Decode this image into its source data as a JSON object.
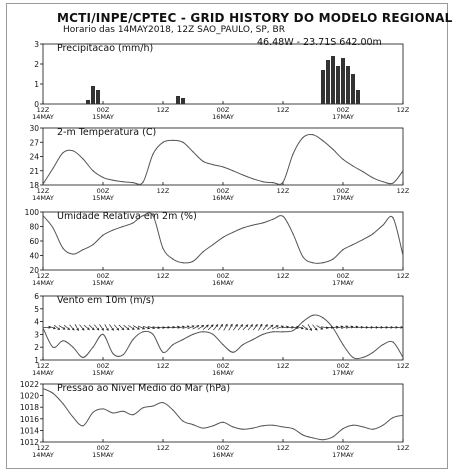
{
  "header": {
    "title": "MCTI/INPE/CPTEC - GRID HISTORY DO MODELO REGIONAL",
    "subtitle": "Horario das 14MAY2018, 12Z  SAO_PAULO, SP, BR",
    "coords": "46.48W - 23.71S  642.00m"
  },
  "colors": {
    "bars": "#333333",
    "line": "#555555",
    "grid": "#bbbbbb",
    "axis": "#111111"
  },
  "chart_data": [
    {
      "type": "bar",
      "title": "Precipitacao (mm/h)",
      "x_ticks": [
        {
          "h": 0,
          "lines": [
            "12Z",
            "14MAY"
          ]
        },
        {
          "h": 12,
          "lines": [
            "00Z",
            "15MAY"
          ]
        },
        {
          "h": 24,
          "lines": [
            "12Z"
          ]
        },
        {
          "h": 36,
          "lines": [
            "00Z",
            "16MAY"
          ]
        },
        {
          "h": 48,
          "lines": [
            "12Z"
          ]
        },
        {
          "h": 60,
          "lines": [
            "00Z",
            "17MAY"
          ]
        },
        {
          "h": 72,
          "lines": [
            "12Z"
          ]
        }
      ],
      "xlim": [
        0,
        72
      ],
      "ylim": [
        0,
        3
      ],
      "yticks": [
        0,
        1,
        2,
        3
      ],
      "grid": false,
      "x": [
        9,
        10,
        11,
        27,
        28,
        56,
        57,
        58,
        59,
        60,
        61,
        62,
        63
      ],
      "values": [
        0.2,
        0.9,
        0.7,
        0.4,
        0.3,
        1.7,
        2.2,
        2.4,
        1.9,
        2.3,
        1.9,
        1.5,
        0.7
      ]
    },
    {
      "type": "line",
      "title": "2-m Temperatura (C)",
      "x_ticks": [
        {
          "h": 0,
          "lines": [
            "12Z",
            "14MAY"
          ]
        },
        {
          "h": 12,
          "lines": [
            "00Z",
            "15MAY"
          ]
        },
        {
          "h": 24,
          "lines": [
            "12Z"
          ]
        },
        {
          "h": 36,
          "lines": [
            "00Z",
            "16MAY"
          ]
        },
        {
          "h": 48,
          "lines": [
            "12Z"
          ]
        },
        {
          "h": 60,
          "lines": [
            "00Z",
            "17MAY"
          ]
        },
        {
          "h": 72,
          "lines": [
            "12Z"
          ]
        }
      ],
      "xlim": [
        0,
        72
      ],
      "ylim": [
        18,
        30
      ],
      "yticks": [
        18,
        21,
        24,
        27,
        30
      ],
      "grid": false,
      "x": [
        0,
        2,
        4,
        6,
        8,
        10,
        12,
        14,
        16,
        18,
        20,
        22,
        24,
        26,
        28,
        30,
        32,
        34,
        36,
        38,
        40,
        42,
        44,
        46,
        48,
        50,
        52,
        54,
        56,
        58,
        60,
        62,
        64,
        66,
        68,
        70,
        72
      ],
      "values": [
        18.2,
        21.5,
        24.8,
        25.2,
        23.5,
        21.0,
        19.6,
        19.0,
        18.7,
        18.5,
        18.6,
        24.5,
        27.0,
        27.4,
        27.0,
        25.0,
        23.0,
        22.3,
        21.8,
        21.0,
        20.1,
        19.3,
        18.7,
        18.5,
        18.6,
        24.5,
        28.0,
        28.6,
        27.3,
        25.5,
        23.4,
        22.0,
        20.8,
        19.5,
        18.7,
        18.4,
        21.0
      ]
    },
    {
      "type": "line",
      "title": "Umidade Relativa em 2m (%)",
      "x_ticks": [
        {
          "h": 0,
          "lines": [
            "12Z",
            "14MAY"
          ]
        },
        {
          "h": 12,
          "lines": [
            "00Z",
            "15MAY"
          ]
        },
        {
          "h": 24,
          "lines": [
            "12Z"
          ]
        },
        {
          "h": 36,
          "lines": [
            "00Z",
            "16MAY"
          ]
        },
        {
          "h": 48,
          "lines": [
            "12Z"
          ]
        },
        {
          "h": 60,
          "lines": [
            "00Z",
            "17MAY"
          ]
        },
        {
          "h": 72,
          "lines": [
            "12Z"
          ]
        }
      ],
      "xlim": [
        0,
        72
      ],
      "ylim": [
        20,
        100
      ],
      "yticks": [
        20,
        40,
        60,
        80,
        100
      ],
      "grid": false,
      "x": [
        0,
        2,
        4,
        6,
        8,
        10,
        12,
        14,
        16,
        18,
        20,
        22,
        24,
        26,
        28,
        30,
        32,
        34,
        36,
        38,
        40,
        42,
        44,
        46,
        48,
        50,
        52,
        54,
        56,
        58,
        60,
        62,
        64,
        66,
        68,
        70,
        72
      ],
      "values": [
        95,
        78,
        50,
        42,
        48,
        55,
        68,
        75,
        80,
        85,
        95,
        95,
        50,
        35,
        30,
        32,
        45,
        55,
        65,
        72,
        78,
        82,
        85,
        90,
        94,
        70,
        38,
        30,
        30,
        35,
        48,
        55,
        62,
        70,
        82,
        92,
        40
      ]
    },
    {
      "type": "line",
      "title": "Vento em 10m (m/s)",
      "x_ticks": [
        {
          "h": 0,
          "lines": [
            "12Z",
            "14MAY"
          ]
        },
        {
          "h": 12,
          "lines": [
            "00Z",
            "15MAY"
          ]
        },
        {
          "h": 24,
          "lines": [
            "12Z"
          ]
        },
        {
          "h": 36,
          "lines": [
            "00Z",
            "16MAY"
          ]
        },
        {
          "h": 48,
          "lines": [
            "12Z"
          ]
        },
        {
          "h": 60,
          "lines": [
            "00Z",
            "17MAY"
          ]
        },
        {
          "h": 72,
          "lines": [
            "12Z"
          ]
        }
      ],
      "xlim": [
        0,
        72
      ],
      "ylim": [
        1,
        6
      ],
      "yticks": [
        1,
        2,
        3,
        4,
        5,
        6
      ],
      "grid": false,
      "x": [
        0,
        2,
        4,
        6,
        8,
        10,
        12,
        14,
        16,
        18,
        20,
        22,
        24,
        26,
        28,
        30,
        32,
        34,
        36,
        38,
        40,
        42,
        44,
        46,
        48,
        50,
        52,
        54,
        56,
        58,
        60,
        62,
        64,
        66,
        68,
        70,
        72
      ],
      "values": [
        3.5,
        2.0,
        2.5,
        2.0,
        1.2,
        2.0,
        3.0,
        1.5,
        1.4,
        2.6,
        3.2,
        3.0,
        1.6,
        2.2,
        2.6,
        3.0,
        3.2,
        3.0,
        2.2,
        1.6,
        2.2,
        2.6,
        3.0,
        3.2,
        3.2,
        3.3,
        4.0,
        4.5,
        4.3,
        3.5,
        2.2,
        1.2,
        1.2,
        1.6,
        2.2,
        2.4,
        1.2
      ],
      "wind_arrow_angles_deg": [
        0,
        20,
        40,
        30,
        40,
        50,
        60,
        50,
        40,
        45,
        50,
        55,
        60,
        55,
        50,
        45,
        40,
        35,
        30,
        25,
        20,
        15,
        10,
        5,
        0,
        -5,
        -10,
        -15,
        -20,
        -25,
        -30,
        -35,
        -40,
        -45,
        -50,
        -55,
        -60,
        -60,
        -55,
        -50,
        -45,
        -50,
        -55,
        -60,
        -50,
        -40,
        -30,
        -20,
        -10,
        0,
        10,
        20,
        40,
        60,
        50,
        30,
        10,
        0,
        -10,
        -15,
        -20,
        -15,
        -10,
        -5,
        0,
        0,
        0,
        0,
        0,
        0,
        0,
        0
      ]
    },
    {
      "type": "line",
      "title": "Pressao ao Nivel Medio do Mar (hPa)",
      "x_ticks": [
        {
          "h": 0,
          "lines": [
            "12Z",
            "14MAY"
          ]
        },
        {
          "h": 12,
          "lines": [
            "00Z",
            "15MAY"
          ]
        },
        {
          "h": 24,
          "lines": [
            "12Z"
          ]
        },
        {
          "h": 36,
          "lines": [
            "00Z",
            "16MAY"
          ]
        },
        {
          "h": 48,
          "lines": [
            "12Z"
          ]
        },
        {
          "h": 60,
          "lines": [
            "00Z",
            "17MAY"
          ]
        },
        {
          "h": 72,
          "lines": [
            "12Z"
          ]
        }
      ],
      "xlim": [
        0,
        72
      ],
      "ylim": [
        1012,
        1022
      ],
      "yticks": [
        1012,
        1014,
        1016,
        1018,
        1020,
        1022
      ],
      "grid": false,
      "x": [
        0,
        2,
        4,
        6,
        8,
        10,
        12,
        14,
        16,
        18,
        20,
        22,
        24,
        26,
        28,
        30,
        32,
        34,
        36,
        38,
        40,
        42,
        44,
        46,
        48,
        50,
        52,
        54,
        56,
        58,
        60,
        62,
        64,
        66,
        68,
        70,
        72
      ],
      "values": [
        1021.2,
        1020.4,
        1018.6,
        1016.3,
        1014.8,
        1017.1,
        1017.7,
        1017.0,
        1017.3,
        1016.7,
        1017.9,
        1018.2,
        1018.8,
        1017.5,
        1015.6,
        1015.0,
        1014.4,
        1014.8,
        1015.4,
        1014.6,
        1014.2,
        1014.4,
        1014.8,
        1014.9,
        1014.6,
        1014.3,
        1013.2,
        1012.7,
        1012.4,
        1012.9,
        1014.3,
        1014.9,
        1014.6,
        1014.2,
        1014.9,
        1016.2,
        1016.6
      ]
    }
  ]
}
